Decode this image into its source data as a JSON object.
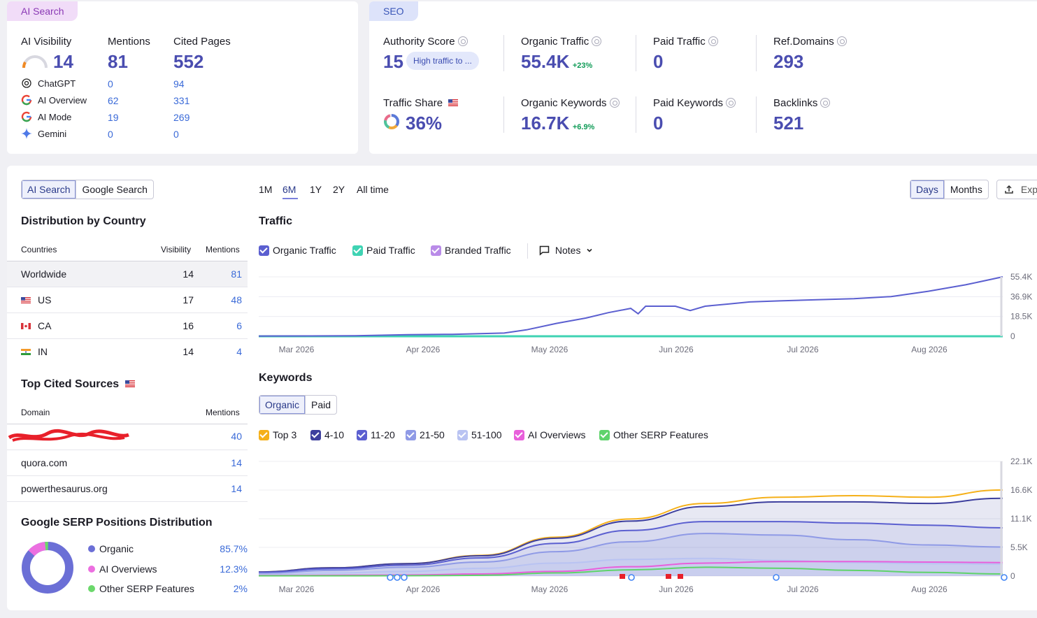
{
  "ai_card": {
    "tag": "AI Search",
    "col_visibility": "AI Visibility",
    "col_mentions": "Mentions",
    "col_cited": "Cited Pages",
    "visibility_value": "14",
    "mentions_value": "81",
    "cited_value": "552",
    "rows": [
      {
        "name": "ChatGPT",
        "mentions": "0",
        "cited": "94",
        "icon": "chatgpt-icon"
      },
      {
        "name": "AI Overview",
        "mentions": "62",
        "cited": "331",
        "icon": "google-icon"
      },
      {
        "name": "AI Mode",
        "mentions": "19",
        "cited": "269",
        "icon": "google-icon"
      },
      {
        "name": "Gemini",
        "mentions": "0",
        "cited": "0",
        "icon": "gemini-icon"
      }
    ]
  },
  "seo_card": {
    "tag": "SEO",
    "authority_label": "Authority Score",
    "authority_value": "15",
    "authority_badge": "High traffic to ...",
    "organic_traffic_label": "Organic Traffic",
    "organic_traffic_value": "55.4K",
    "organic_traffic_delta": "+23%",
    "paid_traffic_label": "Paid Traffic",
    "paid_traffic_value": "0",
    "ref_domains_label": "Ref.Domains",
    "ref_domains_value": "293",
    "traffic_share_label": "Traffic Share",
    "traffic_share_value": "36%",
    "organic_keywords_label": "Organic Keywords",
    "organic_keywords_value": "16.7K",
    "organic_keywords_delta": "+6.9%",
    "paid_keywords_label": "Paid Keywords",
    "paid_keywords_value": "0",
    "backlinks_label": "Backlinks",
    "backlinks_value": "521"
  },
  "left_panel": {
    "toggle": [
      "AI Search",
      "Google Search"
    ],
    "distribution_title": "Distribution by Country",
    "col_countries": "Countries",
    "col_visibility": "Visibility",
    "col_mentions": "Mentions",
    "countries": [
      {
        "name": "Worldwide",
        "visibility": "14",
        "mentions": "81"
      },
      {
        "name": "US",
        "visibility": "17",
        "mentions": "48"
      },
      {
        "name": "CA",
        "visibility": "16",
        "mentions": "6"
      },
      {
        "name": "IN",
        "visibility": "14",
        "mentions": "4"
      }
    ],
    "sources_title": "Top Cited Sources",
    "col_domain": "Domain",
    "col_src_mentions": "Mentions",
    "sources": [
      {
        "domain": "",
        "mentions": "40"
      },
      {
        "domain": "quora.com",
        "mentions": "14"
      },
      {
        "domain": "powerthesaurus.org",
        "mentions": "14"
      }
    ],
    "serp_title": "Google SERP Positions Distribution",
    "serp": [
      {
        "name": "Organic",
        "value": "85.7%",
        "color": "#6b6fd6"
      },
      {
        "name": "AI Overviews",
        "value": "12.3%",
        "color": "#ec6fe0"
      },
      {
        "name": "Other SERP Features",
        "value": "2%",
        "color": "#6bd86b"
      }
    ]
  },
  "controls": {
    "ranges": [
      "1M",
      "6M",
      "1Y",
      "2Y",
      "All time"
    ],
    "active_range": "6M",
    "granularity": [
      "Days",
      "Months"
    ],
    "export_label": "Exp"
  },
  "traffic_chart": {
    "title": "Traffic",
    "legend": [
      {
        "name": "Organic Traffic",
        "color": "#5b5fd0"
      },
      {
        "name": "Paid Traffic",
        "color": "#3fd3b3"
      },
      {
        "name": "Branded Traffic",
        "color": "#b98be8"
      }
    ],
    "notes_label": "Notes"
  },
  "keywords_chart": {
    "title": "Keywords",
    "toggle": [
      "Organic",
      "Paid"
    ],
    "legend": [
      {
        "name": "Top 3",
        "color": "#f5b019"
      },
      {
        "name": "4-10",
        "color": "#3d3f9e"
      },
      {
        "name": "11-20",
        "color": "#5b5fd0"
      },
      {
        "name": "21-50",
        "color": "#8f9ae6"
      },
      {
        "name": "51-100",
        "color": "#b9c3f2"
      },
      {
        "name": "AI Overviews",
        "color": "#e85fdb"
      },
      {
        "name": "Other SERP Features",
        "color": "#5fd36b"
      }
    ]
  },
  "chart_data": [
    {
      "type": "line",
      "title": "Traffic",
      "x_ticks": [
        "Mar 2026",
        "Apr 2026",
        "May 2026",
        "Jun 2026",
        "Jul 2026",
        "Aug 2026"
      ],
      "y_ticks": [
        "55.4K",
        "36.9K",
        "18.5K",
        "0"
      ],
      "ylim": [
        0,
        55400
      ],
      "series": [
        {
          "name": "Organic Traffic",
          "color": "#5b5fd0",
          "x": [
            0,
            0.07,
            0.13,
            0.2,
            0.26,
            0.33,
            0.36,
            0.4,
            0.44,
            0.47,
            0.5,
            0.51,
            0.52,
            0.56,
            0.58,
            0.6,
            0.63,
            0.66,
            0.7,
            0.75,
            0.8,
            0.85,
            0.9,
            0.95,
            1.0
          ],
          "values": [
            200,
            300,
            500,
            1500,
            1800,
            3000,
            6000,
            12000,
            17000,
            22000,
            26000,
            21000,
            28000,
            28000,
            24000,
            28000,
            30000,
            32000,
            33000,
            34000,
            35000,
            37000,
            42000,
            48000,
            55400
          ]
        },
        {
          "name": "Paid Traffic",
          "color": "#3fd3b3",
          "x": [
            0,
            1
          ],
          "values": [
            0,
            0
          ]
        },
        {
          "name": "Branded Traffic",
          "color": "#b98be8",
          "x": [
            0,
            1
          ],
          "values": [
            0,
            0
          ]
        }
      ]
    },
    {
      "type": "area",
      "title": "Keywords",
      "x_ticks": [
        "Mar 2026",
        "Apr 2026",
        "May 2026",
        "Jun 2026",
        "Jul 2026",
        "Aug 2026"
      ],
      "y_ticks": [
        "22.1K",
        "16.6K",
        "11.1K",
        "5.5K",
        "0"
      ],
      "ylim": [
        0,
        22100
      ],
      "x": [
        0,
        0.1,
        0.2,
        0.3,
        0.4,
        0.5,
        0.6,
        0.7,
        0.8,
        0.9,
        1.0
      ],
      "series": [
        {
          "name": "Top 3",
          "color": "#f5b019",
          "values": [
            800,
            1600,
            2400,
            4000,
            7500,
            11000,
            14000,
            15200,
            15500,
            15200,
            16600
          ]
        },
        {
          "name": "4-10",
          "color": "#3d3f9e",
          "values": [
            800,
            1600,
            2400,
            3900,
            7300,
            10600,
            13400,
            14300,
            14300,
            14000,
            15000
          ]
        },
        {
          "name": "11-20",
          "color": "#5b5fd0",
          "values": [
            700,
            1400,
            2100,
            3500,
            6300,
            8800,
            10500,
            10500,
            10200,
            9800,
            9300
          ]
        },
        {
          "name": "21-50",
          "color": "#8f9ae6",
          "values": [
            500,
            1100,
            1700,
            2700,
            4700,
            6600,
            8200,
            7900,
            7000,
            6000,
            5600
          ]
        },
        {
          "name": "51-100",
          "color": "#b9c3f2",
          "values": [
            300,
            600,
            900,
            1500,
            2500,
            3200,
            3400,
            3000,
            2600,
            2400,
            2300
          ]
        },
        {
          "name": "AI Overviews",
          "color": "#e85fdb",
          "values": [
            100,
            150,
            200,
            400,
            900,
            1800,
            2500,
            2800,
            2800,
            2700,
            2600
          ]
        },
        {
          "name": "Other SERP Features",
          "color": "#5fd36b",
          "values": [
            50,
            50,
            60,
            150,
            600,
            1200,
            1700,
            1500,
            1100,
            700,
            400
          ]
        }
      ]
    }
  ]
}
